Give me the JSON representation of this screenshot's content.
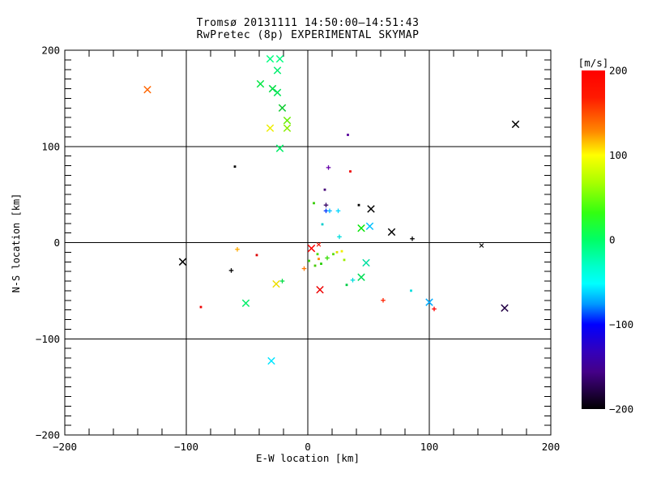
{
  "window": {
    "background": "#ffffff"
  },
  "chart_data": {
    "type": "scatter",
    "title": "Tromsø 20131111 14:50:00–14:51:43",
    "subtitle": "RwPretec (8p) EXPERIMENTAL SKYMAP",
    "xlabel": "E-W location [km]",
    "ylabel": "N-S location [km]",
    "xlim": [
      -200,
      200
    ],
    "ylim": [
      -200,
      200
    ],
    "grid": true,
    "x_major_ticks": [
      -200,
      -100,
      0,
      100,
      200
    ],
    "x_tick_labels": [
      "−200",
      "−100",
      "0",
      "100",
      "200"
    ],
    "x_minor_step": 20,
    "y_major_ticks": [
      200,
      100,
      0,
      -100,
      -200
    ],
    "y_tick_labels": [
      "200",
      "100",
      "0",
      "−100",
      "−200"
    ],
    "y_minor_step": 10,
    "colorbar": {
      "unit_label": "[m/s]",
      "min": -200,
      "max": 200,
      "ticks": [
        200,
        100,
        0,
        -100,
        -200
      ],
      "tick_labels": [
        "200",
        "100",
        "0",
        "−100",
        "−200"
      ],
      "gradient": [
        {
          "pos": 0,
          "color": "#ff0000"
        },
        {
          "pos": 8,
          "color": "#ff1a00"
        },
        {
          "pos": 18,
          "color": "#ff8800"
        },
        {
          "pos": 25,
          "color": "#ffff00"
        },
        {
          "pos": 33,
          "color": "#aaff00"
        },
        {
          "pos": 42,
          "color": "#33ff11"
        },
        {
          "pos": 50,
          "color": "#00ff66"
        },
        {
          "pos": 58,
          "color": "#00ffcc"
        },
        {
          "pos": 63,
          "color": "#00ffff"
        },
        {
          "pos": 69,
          "color": "#0099ff"
        },
        {
          "pos": 75,
          "color": "#0000ff"
        },
        {
          "pos": 83,
          "color": "#3300bb"
        },
        {
          "pos": 89,
          "color": "#440088"
        },
        {
          "pos": 96,
          "color": "#1a0033"
        },
        {
          "pos": 100,
          "color": "#000000"
        }
      ]
    },
    "points": [
      {
        "x": -132,
        "y": 159,
        "c": "#ff6600",
        "m": "x",
        "s": 2
      },
      {
        "x": -31,
        "y": 191,
        "c": "#00ff7f",
        "m": "x",
        "s": 2
      },
      {
        "x": -23,
        "y": 191,
        "c": "#00ff7f",
        "m": "x",
        "s": 2
      },
      {
        "x": -25,
        "y": 179,
        "c": "#00ef70",
        "m": "x",
        "s": 2
      },
      {
        "x": -39,
        "y": 165,
        "c": "#00e640",
        "m": "x",
        "s": 2
      },
      {
        "x": -29,
        "y": 160,
        "c": "#00dd44",
        "m": "x",
        "s": 2
      },
      {
        "x": -25,
        "y": 156,
        "c": "#00e655",
        "m": "x",
        "s": 2
      },
      {
        "x": -21,
        "y": 140,
        "c": "#11cc33",
        "m": "x",
        "s": 2
      },
      {
        "x": -17,
        "y": 127,
        "c": "#66ee00",
        "m": "x",
        "s": 2
      },
      {
        "x": -31,
        "y": 119,
        "c": "#eeee00",
        "m": "x",
        "s": 2
      },
      {
        "x": -17,
        "y": 119,
        "c": "#88ee00",
        "m": "x",
        "s": 2
      },
      {
        "x": -23,
        "y": 98,
        "c": "#00ee66",
        "m": "x",
        "s": 2
      },
      {
        "x": 171,
        "y": 123,
        "c": "#000000",
        "m": "x",
        "s": 2
      },
      {
        "x": -60,
        "y": 79,
        "c": "#000000",
        "m": "d",
        "s": 1
      },
      {
        "x": 33,
        "y": 112,
        "c": "#550099",
        "m": "d",
        "s": 1
      },
      {
        "x": 17,
        "y": 78,
        "c": "#6600aa",
        "m": "p",
        "s": 1
      },
      {
        "x": 35,
        "y": 74,
        "c": "#ee0000",
        "m": "d",
        "s": 1
      },
      {
        "x": 14,
        "y": 55,
        "c": "#440077",
        "m": "d",
        "s": 1
      },
      {
        "x": 5,
        "y": 41,
        "c": "#33cc00",
        "m": "d",
        "s": 1
      },
      {
        "x": 15,
        "y": 39,
        "c": "#330066",
        "m": "p",
        "s": 1
      },
      {
        "x": 15,
        "y": 33,
        "c": "#0033ff",
        "m": "p",
        "s": 1
      },
      {
        "x": 18,
        "y": 33,
        "c": "#00bbff",
        "m": "p",
        "s": 1
      },
      {
        "x": 25,
        "y": 33,
        "c": "#00d5ff",
        "m": "p",
        "s": 1
      },
      {
        "x": 42,
        "y": 39,
        "c": "#000000",
        "m": "d",
        "s": 1
      },
      {
        "x": 52,
        "y": 35,
        "c": "#000000",
        "m": "x",
        "s": 2
      },
      {
        "x": 12,
        "y": 19,
        "c": "#00cccc",
        "m": "d",
        "s": 1
      },
      {
        "x": 26,
        "y": 6,
        "c": "#00dddd",
        "m": "p",
        "s": 1
      },
      {
        "x": 44,
        "y": 15,
        "c": "#00e600",
        "m": "x",
        "s": 2
      },
      {
        "x": 51,
        "y": 17,
        "c": "#00bfff",
        "m": "x",
        "s": 2
      },
      {
        "x": 69,
        "y": 11,
        "c": "#000000",
        "m": "x",
        "s": 2
      },
      {
        "x": 86,
        "y": 4,
        "c": "#000000",
        "m": "p",
        "s": 1
      },
      {
        "x": 143,
        "y": -3,
        "c": "#000000",
        "m": "x",
        "s": 1
      },
      {
        "x": 3,
        "y": -6,
        "c": "#ff0000",
        "m": "x",
        "s": 2
      },
      {
        "x": 9,
        "y": -2,
        "c": "#ee1100",
        "m": "x",
        "s": 1
      },
      {
        "x": -58,
        "y": -7,
        "c": "#ffaa00",
        "m": "p",
        "s": 1
      },
      {
        "x": -42,
        "y": -13,
        "c": "#dd0000",
        "m": "d",
        "s": 1
      },
      {
        "x": -63,
        "y": -29,
        "c": "#000000",
        "m": "p",
        "s": 1
      },
      {
        "x": -103,
        "y": -20,
        "c": "#000000",
        "m": "x",
        "s": 2
      },
      {
        "x": 28,
        "y": -9,
        "c": "#eeee00",
        "m": "d",
        "s": 1
      },
      {
        "x": 24,
        "y": -10,
        "c": "#dddd00",
        "m": "d",
        "s": 1
      },
      {
        "x": 8,
        "y": -12,
        "c": "#44dd00",
        "m": "d",
        "s": 1
      },
      {
        "x": 16,
        "y": -16,
        "c": "#33dd00",
        "m": "p",
        "s": 1
      },
      {
        "x": 21,
        "y": -12,
        "c": "#55dd00",
        "m": "d",
        "s": 1
      },
      {
        "x": 30,
        "y": -18,
        "c": "#99ee00",
        "m": "d",
        "s": 1
      },
      {
        "x": 9,
        "y": -17,
        "c": "#ff8800",
        "m": "d",
        "s": 1
      },
      {
        "x": 1,
        "y": -19,
        "c": "#33cc00",
        "m": "d",
        "s": 1
      },
      {
        "x": 11,
        "y": -22,
        "c": "#22cc00",
        "m": "d",
        "s": 1
      },
      {
        "x": 6,
        "y": -24,
        "c": "#44cc00",
        "m": "d",
        "s": 1
      },
      {
        "x": -3,
        "y": -27,
        "c": "#ff7700",
        "m": "p",
        "s": 1
      },
      {
        "x": -26,
        "y": -43,
        "c": "#eedd00",
        "m": "x",
        "s": 2
      },
      {
        "x": -21,
        "y": -40,
        "c": "#00dd44",
        "m": "p",
        "s": 1
      },
      {
        "x": 10,
        "y": -49,
        "c": "#ee0000",
        "m": "x",
        "s": 2
      },
      {
        "x": 32,
        "y": -44,
        "c": "#00cc44",
        "m": "d",
        "s": 1
      },
      {
        "x": 37,
        "y": -39,
        "c": "#00dddd",
        "m": "p",
        "s": 1
      },
      {
        "x": 44,
        "y": -36,
        "c": "#00dd55",
        "m": "x",
        "s": 2
      },
      {
        "x": 48,
        "y": -21,
        "c": "#00e0a0",
        "m": "x",
        "s": 2
      },
      {
        "x": -51,
        "y": -63,
        "c": "#00ee66",
        "m": "x",
        "s": 2
      },
      {
        "x": -88,
        "y": -67,
        "c": "#ee0000",
        "m": "d",
        "s": 1
      },
      {
        "x": 62,
        "y": -60,
        "c": "#ff2200",
        "m": "p",
        "s": 1
      },
      {
        "x": 85,
        "y": -50,
        "c": "#00dddd",
        "m": "d",
        "s": 1
      },
      {
        "x": 100,
        "y": -62,
        "c": "#00aaff",
        "m": "x",
        "s": 2
      },
      {
        "x": 104,
        "y": -69,
        "c": "#ff0000",
        "m": "p",
        "s": 1
      },
      {
        "x": 162,
        "y": -68,
        "c": "#220044",
        "m": "x",
        "s": 2
      },
      {
        "x": -30,
        "y": -123,
        "c": "#00e5ff",
        "m": "x",
        "s": 2
      }
    ]
  }
}
